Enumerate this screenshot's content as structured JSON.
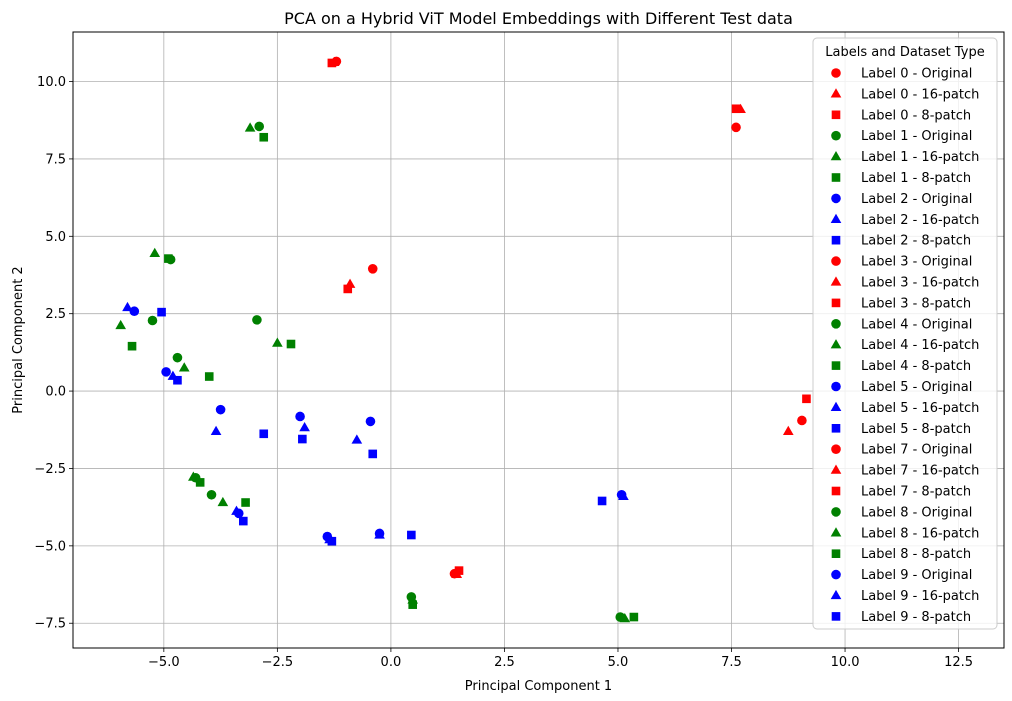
{
  "chart_data": {
    "type": "scatter",
    "title": "PCA on a Hybrid ViT Model Embeddings with Different Test data",
    "xlabel": "Principal Component 1",
    "ylabel": "Principal Component 2",
    "xlim": [
      -7.0,
      13.5
    ],
    "ylim": [
      -8.3,
      11.6
    ],
    "xticks": [
      -5.0,
      -2.5,
      0.0,
      2.5,
      5.0,
      7.5,
      10.0,
      12.5
    ],
    "xtick_labels": [
      "−5.0",
      "−2.5",
      "0.0",
      "2.5",
      "5.0",
      "7.5",
      "10.0",
      "12.5"
    ],
    "yticks": [
      -7.5,
      -5.0,
      -2.5,
      0.0,
      2.5,
      5.0,
      7.5,
      10.0
    ],
    "ytick_labels": [
      "−7.5",
      "−5.0",
      "−2.5",
      "0.0",
      "2.5",
      "5.0",
      "7.5",
      "10.0"
    ],
    "grid": true,
    "legend_title": "Labels and Dataset Type",
    "legend_position": "top-right",
    "colors": {
      "red": "#ff0000",
      "green": "#008000",
      "blue": "#0000ff",
      "grid": "#b0b0b0",
      "axis": "#000000"
    },
    "series": [
      {
        "name": "Label 0 - Original",
        "color": "red",
        "marker": "circle",
        "points": [
          [
            -1.2,
            10.65
          ],
          [
            7.6,
            8.52
          ]
        ]
      },
      {
        "name": "Label 0 - 16-patch",
        "color": "red",
        "marker": "triangle",
        "points": [
          [
            -1.25,
            10.62
          ],
          [
            7.7,
            9.1
          ]
        ]
      },
      {
        "name": "Label 0 - 8-patch",
        "color": "red",
        "marker": "square",
        "points": [
          [
            -1.3,
            10.6
          ],
          [
            7.6,
            9.12
          ]
        ]
      },
      {
        "name": "Label 1 - Original",
        "color": "green",
        "marker": "circle",
        "points": [
          [
            -2.9,
            8.55
          ],
          [
            -4.85,
            4.25
          ],
          [
            -2.95,
            2.3
          ]
        ]
      },
      {
        "name": "Label 1 - 16-patch",
        "color": "green",
        "marker": "triangle",
        "points": [
          [
            -3.1,
            8.5
          ],
          [
            -5.2,
            4.45
          ],
          [
            -2.5,
            1.55
          ]
        ]
      },
      {
        "name": "Label 1 - 8-patch",
        "color": "green",
        "marker": "square",
        "points": [
          [
            -2.8,
            8.2
          ],
          [
            -4.9,
            4.28
          ],
          [
            -2.2,
            1.52
          ]
        ]
      },
      {
        "name": "Label 2 - Original",
        "color": "blue",
        "marker": "circle",
        "points": [
          [
            -5.65,
            2.58
          ],
          [
            -4.95,
            0.62
          ],
          [
            -0.45,
            -0.98
          ]
        ]
      },
      {
        "name": "Label 2 - 16-patch",
        "color": "blue",
        "marker": "triangle",
        "points": [
          [
            -5.8,
            2.7
          ],
          [
            -4.8,
            0.48
          ],
          [
            -0.75,
            -1.58
          ]
        ]
      },
      {
        "name": "Label 2 - 8-patch",
        "color": "blue",
        "marker": "square",
        "points": [
          [
            -5.05,
            2.55
          ],
          [
            -4.7,
            0.35
          ],
          [
            -0.4,
            -2.03
          ]
        ]
      },
      {
        "name": "Label 3 - Original",
        "color": "red",
        "marker": "circle",
        "points": [
          [
            -0.4,
            3.95
          ]
        ]
      },
      {
        "name": "Label 3 - 16-patch",
        "color": "red",
        "marker": "triangle",
        "points": [
          [
            -0.9,
            3.45
          ]
        ]
      },
      {
        "name": "Label 3 - 8-patch",
        "color": "red",
        "marker": "square",
        "points": [
          [
            -0.95,
            3.3
          ]
        ]
      },
      {
        "name": "Label 4 - Original",
        "color": "green",
        "marker": "circle",
        "points": [
          [
            -5.25,
            2.28
          ],
          [
            -4.7,
            1.08
          ],
          [
            -3.95,
            -3.35
          ]
        ]
      },
      {
        "name": "Label 4 - 16-patch",
        "color": "green",
        "marker": "triangle",
        "points": [
          [
            -5.95,
            2.12
          ],
          [
            -4.55,
            0.75
          ],
          [
            -3.7,
            -3.6
          ]
        ]
      },
      {
        "name": "Label 4 - 8-patch",
        "color": "green",
        "marker": "square",
        "points": [
          [
            -5.7,
            1.45
          ],
          [
            -4.0,
            0.47
          ],
          [
            -3.2,
            -3.6
          ]
        ]
      },
      {
        "name": "Label 5 - Original",
        "color": "blue",
        "marker": "circle",
        "points": [
          [
            -3.75,
            -0.6
          ],
          [
            -2.0,
            -0.82
          ],
          [
            -3.35,
            -3.95
          ]
        ]
      },
      {
        "name": "Label 5 - 16-patch",
        "color": "blue",
        "marker": "triangle",
        "points": [
          [
            -3.85,
            -1.3
          ],
          [
            -1.9,
            -1.18
          ],
          [
            -3.4,
            -3.88
          ]
        ]
      },
      {
        "name": "Label 5 - 8-patch",
        "color": "blue",
        "marker": "square",
        "points": [
          [
            -2.8,
            -1.38
          ],
          [
            -1.95,
            -1.55
          ],
          [
            -3.25,
            -4.2
          ]
        ]
      },
      {
        "name": "Label 7 - Original",
        "color": "red",
        "marker": "circle",
        "points": [
          [
            9.05,
            -0.95
          ],
          [
            1.4,
            -5.9
          ]
        ]
      },
      {
        "name": "Label 7 - 16-patch",
        "color": "red",
        "marker": "triangle",
        "points": [
          [
            8.75,
            -1.3
          ],
          [
            1.45,
            -5.92
          ]
        ]
      },
      {
        "name": "Label 7 - 8-patch",
        "color": "red",
        "marker": "square",
        "points": [
          [
            9.15,
            -0.25
          ],
          [
            1.5,
            -5.8
          ]
        ]
      },
      {
        "name": "Label 8 - Original",
        "color": "green",
        "marker": "circle",
        "points": [
          [
            -4.3,
            -2.8
          ],
          [
            0.45,
            -6.65
          ],
          [
            5.05,
            -7.3
          ]
        ]
      },
      {
        "name": "Label 8 - 16-patch",
        "color": "green",
        "marker": "triangle",
        "points": [
          [
            -4.35,
            -2.78
          ],
          [
            0.48,
            -6.75
          ],
          [
            5.15,
            -7.35
          ]
        ]
      },
      {
        "name": "Label 8 - 8-patch",
        "color": "green",
        "marker": "square",
        "points": [
          [
            -4.2,
            -2.95
          ],
          [
            0.48,
            -6.9
          ],
          [
            5.35,
            -7.3
          ]
        ]
      },
      {
        "name": "Label 9 - Original",
        "color": "blue",
        "marker": "circle",
        "points": [
          [
            -1.4,
            -4.7
          ],
          [
            -0.25,
            -4.6
          ],
          [
            5.08,
            -3.35
          ]
        ]
      },
      {
        "name": "Label 9 - 16-patch",
        "color": "blue",
        "marker": "triangle",
        "points": [
          [
            -1.35,
            -4.8
          ],
          [
            -0.25,
            -4.65
          ],
          [
            5.12,
            -3.4
          ]
        ]
      },
      {
        "name": "Label 9 - 8-patch",
        "color": "blue",
        "marker": "square",
        "points": [
          [
            -1.3,
            -4.85
          ],
          [
            0.45,
            -4.65
          ],
          [
            4.65,
            -3.55
          ]
        ]
      }
    ]
  }
}
